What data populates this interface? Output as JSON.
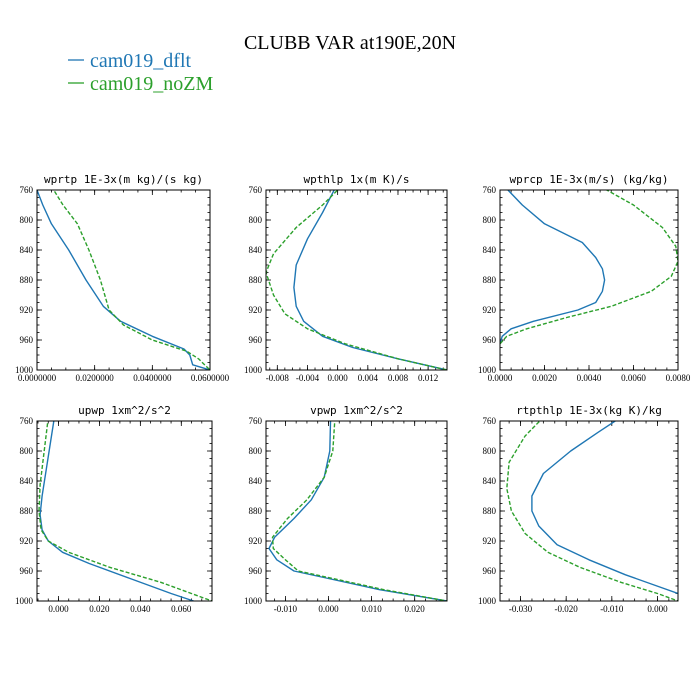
{
  "title": "CLUBB VAR at190E,20N",
  "legend": [
    {
      "label": "cam019_dflt",
      "color": "#1f77b4"
    },
    {
      "label": "cam019_noZM",
      "color": "#2ca02c"
    }
  ],
  "chart_data": [
    {
      "type": "line",
      "title": "wprtp  1E-3x(m kg)/(s kg)",
      "xlim": [
        0.0,
        0.06
      ],
      "ylim": [
        760,
        1000
      ],
      "y_inverted": true,
      "x_ticks": [
        0.0,
        0.02,
        0.04,
        0.06
      ],
      "x_tick_labels": [
        "0.0000000",
        "0.0200000",
        "0.0400000",
        "0.0600000"
      ],
      "y_ticks": [
        760,
        800,
        840,
        880,
        920,
        960,
        1000
      ],
      "y_tick_labels": [
        "760",
        "800",
        "840",
        "880",
        "920",
        "960",
        "1000"
      ],
      "series": [
        {
          "name": "cam019_dflt",
          "color": "#1f77b4",
          "dash": "none",
          "x": [
            0.0,
            0.002,
            0.005,
            0.011,
            0.017,
            0.023,
            0.029,
            0.04,
            0.051,
            0.053,
            0.054,
            0.06
          ],
          "y": [
            760,
            780,
            805,
            840,
            880,
            915,
            935,
            955,
            972,
            980,
            993,
            1000
          ]
        },
        {
          "name": "cam019_noZM",
          "color": "#2ca02c",
          "dash": "4,2",
          "x": [
            0.005,
            0.009,
            0.014,
            0.018,
            0.022,
            0.025,
            0.03,
            0.04,
            0.052,
            0.056,
            0.06
          ],
          "y": [
            755,
            780,
            805,
            840,
            880,
            920,
            940,
            960,
            975,
            985,
            1000
          ]
        }
      ]
    },
    {
      "type": "line",
      "title": "wpthlp  1x(m K)/s",
      "xlim": [
        -0.0095,
        0.0145
      ],
      "ylim": [
        760,
        1000
      ],
      "y_inverted": true,
      "x_ticks": [
        -0.008,
        -0.004,
        0.0,
        0.004,
        0.008,
        0.012
      ],
      "x_tick_labels": [
        "-0.008",
        "-0.004",
        "0.000",
        "0.004",
        "0.008",
        "0.012"
      ],
      "y_ticks": [
        760,
        800,
        840,
        880,
        920,
        960,
        1000
      ],
      "y_tick_labels": [
        "760",
        "800",
        "840",
        "880",
        "920",
        "960",
        "1000"
      ],
      "series": [
        {
          "name": "cam019_dflt",
          "color": "#1f77b4",
          "dash": "none",
          "x": [
            -0.0002,
            -0.002,
            -0.004,
            -0.0055,
            -0.0058,
            -0.0055,
            -0.0045,
            -0.002,
            0.002,
            0.008,
            0.0145
          ],
          "y": [
            755,
            790,
            825,
            860,
            890,
            915,
            935,
            955,
            970,
            985,
            1000
          ]
        },
        {
          "name": "cam019_noZM",
          "color": "#2ca02c",
          "dash": "4,2",
          "x": [
            0.0005,
            -0.002,
            -0.0055,
            -0.0085,
            -0.0095,
            -0.0085,
            -0.007,
            -0.004,
            0.001,
            0.008,
            0.0145
          ],
          "y": [
            755,
            780,
            810,
            845,
            870,
            900,
            925,
            945,
            965,
            985,
            1000
          ]
        }
      ]
    },
    {
      "type": "line",
      "title": "wprcp  1E-3x(m/s) (kg/kg)",
      "xlim": [
        0.0,
        0.008
      ],
      "ylim": [
        760,
        1000
      ],
      "y_inverted": true,
      "x_ticks": [
        0.0,
        0.002,
        0.004,
        0.006,
        0.008
      ],
      "x_tick_labels": [
        "0.0000",
        "0.0020",
        "0.0040",
        "0.0060",
        "0.0080"
      ],
      "y_ticks": [
        760,
        800,
        840,
        880,
        920,
        960,
        1000
      ],
      "y_tick_labels": [
        "760",
        "800",
        "840",
        "880",
        "920",
        "960",
        "1000"
      ],
      "series": [
        {
          "name": "cam019_dflt",
          "color": "#1f77b4",
          "dash": "none",
          "x": [
            0.0002,
            0.001,
            0.002,
            0.0037,
            0.0043,
            0.0046,
            0.0047,
            0.0046,
            0.0043,
            0.0035,
            0.0015,
            0.0005,
            0.0001,
            0.0
          ],
          "y": [
            755,
            780,
            805,
            830,
            850,
            865,
            880,
            895,
            910,
            920,
            935,
            945,
            955,
            965
          ]
        },
        {
          "name": "cam019_noZM",
          "color": "#2ca02c",
          "dash": "4,2",
          "x": [
            0.0045,
            0.006,
            0.0073,
            0.0079,
            0.008,
            0.0077,
            0.0068,
            0.005,
            0.003,
            0.0012,
            0.0003,
            0.0
          ],
          "y": [
            755,
            780,
            810,
            835,
            855,
            875,
            895,
            915,
            930,
            945,
            955,
            965
          ]
        }
      ]
    },
    {
      "type": "line",
      "title": "upwp  1xm^2/s^2",
      "xlim": [
        -0.0105,
        0.075
      ],
      "ylim": [
        760,
        1000
      ],
      "y_inverted": true,
      "x_ticks": [
        0.0,
        0.02,
        0.04,
        0.06
      ],
      "x_tick_labels": [
        "0.000",
        "0.020",
        "0.040",
        "0.060"
      ],
      "y_ticks": [
        760,
        800,
        840,
        880,
        920,
        960,
        1000
      ],
      "y_tick_labels": [
        "760",
        "800",
        "840",
        "880",
        "920",
        "960",
        "1000"
      ],
      "series": [
        {
          "name": "cam019_dflt",
          "color": "#1f77b4",
          "dash": "none",
          "x": [
            -0.002,
            -0.004,
            -0.006,
            -0.008,
            -0.009,
            -0.008,
            -0.005,
            0.002,
            0.015,
            0.035,
            0.055,
            0.066
          ],
          "y": [
            755,
            790,
            825,
            860,
            885,
            905,
            920,
            935,
            950,
            970,
            990,
            1000
          ]
        },
        {
          "name": "cam019_noZM",
          "color": "#2ca02c",
          "dash": "4,2",
          "x": [
            -0.005,
            -0.007,
            -0.009,
            -0.0095,
            -0.0085,
            -0.005,
            0.005,
            0.025,
            0.05,
            0.075
          ],
          "y": [
            755,
            800,
            845,
            880,
            905,
            920,
            935,
            955,
            975,
            1000
          ]
        }
      ]
    },
    {
      "type": "line",
      "title": "vpwp  1xm^2/s^2",
      "xlim": [
        -0.0145,
        0.0275
      ],
      "ylim": [
        760,
        1000
      ],
      "y_inverted": true,
      "x_ticks": [
        -0.01,
        0.0,
        0.01,
        0.02
      ],
      "x_tick_labels": [
        "-0.010",
        "0.000",
        "0.010",
        "0.020"
      ],
      "y_ticks": [
        760,
        800,
        840,
        880,
        920,
        960,
        1000
      ],
      "y_tick_labels": [
        "760",
        "800",
        "840",
        "880",
        "920",
        "960",
        "1000"
      ],
      "series": [
        {
          "name": "cam019_dflt",
          "color": "#1f77b4",
          "dash": "none",
          "x": [
            0.0005,
            0.0003,
            -0.001,
            -0.004,
            -0.008,
            -0.0125,
            -0.0138,
            -0.012,
            -0.008,
            0.0,
            0.012,
            0.0275
          ],
          "y": [
            755,
            800,
            835,
            865,
            890,
            915,
            930,
            945,
            960,
            970,
            985,
            1000
          ]
        },
        {
          "name": "cam019_noZM",
          "color": "#2ca02c",
          "dash": "4,2",
          "x": [
            0.0015,
            0.001,
            -0.001,
            -0.005,
            -0.0095,
            -0.013,
            -0.0128,
            -0.01,
            -0.007,
            0.001,
            0.013,
            0.0275
          ],
          "y": [
            755,
            800,
            835,
            865,
            890,
            915,
            930,
            945,
            960,
            970,
            985,
            1000
          ]
        }
      ]
    },
    {
      "type": "line",
      "title": "rtpthlp  1E-3x(kg K)/kg",
      "xlim": [
        -0.0345,
        0.0045
      ],
      "ylim": [
        760,
        1000
      ],
      "y_inverted": true,
      "x_ticks": [
        -0.03,
        -0.02,
        -0.01,
        0.0
      ],
      "x_tick_labels": [
        "-0.030",
        "-0.020",
        "-0.010",
        "0.000"
      ],
      "y_ticks": [
        760,
        800,
        840,
        880,
        920,
        960,
        1000
      ],
      "y_tick_labels": [
        "760",
        "800",
        "840",
        "880",
        "920",
        "960",
        "1000"
      ],
      "series": [
        {
          "name": "cam019_dflt",
          "color": "#1f77b4",
          "dash": "none",
          "x": [
            -0.008,
            -0.013,
            -0.019,
            -0.025,
            -0.0275,
            -0.0275,
            -0.026,
            -0.022,
            -0.015,
            -0.007,
            0.0045
          ],
          "y": [
            755,
            775,
            800,
            830,
            860,
            880,
            900,
            925,
            945,
            965,
            990
          ]
        },
        {
          "name": "cam019_noZM",
          "color": "#2ca02c",
          "dash": "4,2",
          "x": [
            -0.025,
            -0.029,
            -0.0325,
            -0.033,
            -0.032,
            -0.029,
            -0.024,
            -0.017,
            -0.008,
            0.0,
            0.0045
          ],
          "y": [
            755,
            780,
            815,
            850,
            880,
            910,
            935,
            955,
            975,
            990,
            1000
          ]
        }
      ]
    }
  ]
}
